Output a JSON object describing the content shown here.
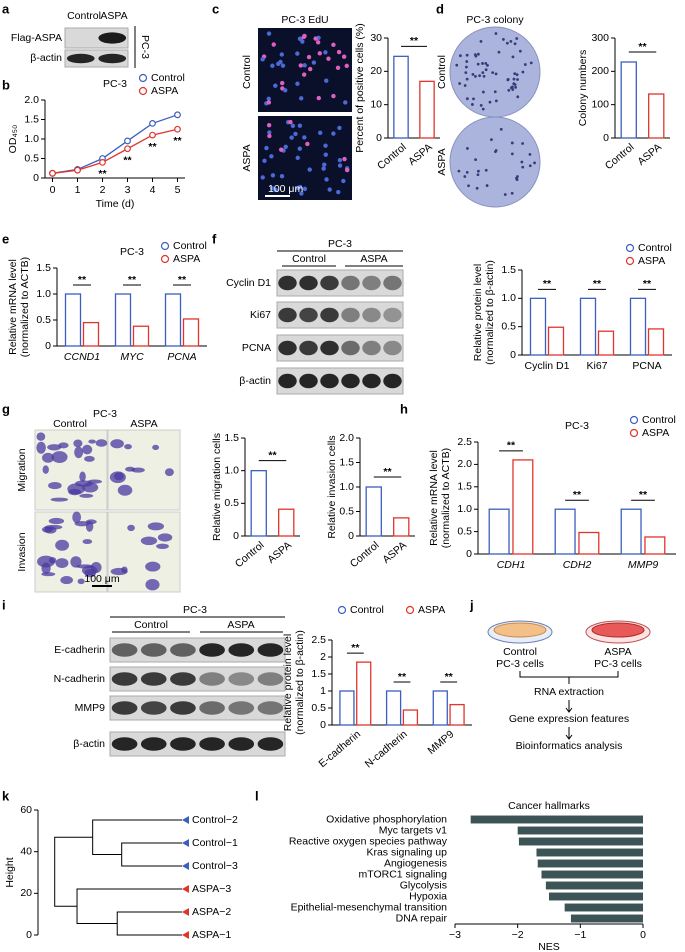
{
  "panel_labels": [
    "a",
    "b",
    "c",
    "d",
    "e",
    "f",
    "g",
    "h",
    "i",
    "j",
    "k",
    "l"
  ],
  "blot_a": {
    "lanes": [
      "Control",
      "ASPA"
    ],
    "rows": [
      "Flag-ASPA",
      "β-actin"
    ],
    "cell_line": "PC-3"
  },
  "image_c": {
    "title": "PC-3 EdU",
    "rows": [
      "Control",
      "ASPA"
    ],
    "scale": "100 μm"
  },
  "image_d": {
    "title": "PC-3 colony",
    "rows": [
      "Control",
      "ASPA"
    ]
  },
  "blot_f": {
    "title": "PC-3",
    "groups": [
      "Control",
      "ASPA"
    ],
    "rows": [
      "Cyclin D1",
      "Ki67",
      "PCNA",
      "β-actin"
    ]
  },
  "image_g": {
    "title": "PC-3",
    "columns": [
      "Control",
      "ASPA"
    ],
    "rows": [
      "Migration",
      "Invasion"
    ],
    "scale": "100 μm"
  },
  "blot_i": {
    "title": "PC-3",
    "groups": [
      "Control",
      "ASPA"
    ],
    "rows": [
      "E-cadherin",
      "N-cadherin",
      "MMP9",
      "β-actin"
    ]
  },
  "flowchart_j": {
    "dishes": [
      [
        "Control",
        "PC-3 cells"
      ],
      [
        "ASPA",
        "PC-3 cells"
      ]
    ],
    "steps": [
      "RNA extraction",
      "Gene expression features",
      "Bioinformatics analysis"
    ]
  },
  "dendrogram_k": {
    "ylabel": "Height",
    "ylim": [
      0,
      60
    ],
    "yticks": [
      0,
      20,
      40,
      60
    ],
    "leaves": [
      {
        "name": "Control−2",
        "color": "#3b5fc0"
      },
      {
        "name": "Control−1",
        "color": "#3b5fc0"
      },
      {
        "name": "Control−3",
        "color": "#3b5fc0"
      },
      {
        "name": "ASPA−3",
        "color": "#e0352b"
      },
      {
        "name": "ASPA−2",
        "color": "#e0352b"
      },
      {
        "name": "ASPA−1",
        "color": "#e0352b"
      }
    ],
    "merge_heights": [
      27,
      40,
      29,
      47,
      57
    ]
  },
  "chart_data": [
    {
      "type": "line",
      "title": "PC-3",
      "xlabel": "Time (d)",
      "ylabel": "OD₄₅₀",
      "x": [
        0,
        1,
        2,
        3,
        4,
        5
      ],
      "xlim": [
        -0.3,
        5.3
      ],
      "xticks": [
        0,
        1,
        2,
        3,
        4,
        5
      ],
      "ylim": [
        0,
        2
      ],
      "yticks": [
        0,
        0.5,
        {
          "value": 1,
          "label": "1.0"
        },
        1.5,
        {
          "value": 2,
          "label": "2.0"
        }
      ],
      "series": [
        {
          "name": "Control",
          "color": "#3b5fc0",
          "values": [
            0.12,
            0.22,
            0.5,
            0.95,
            1.4,
            1.62
          ]
        },
        {
          "name": "ASPA",
          "color": "#e0352b",
          "values": [
            0.12,
            0.2,
            0.4,
            0.75,
            1.1,
            1.25
          ]
        }
      ],
      "annotations": [
        "**",
        "**",
        "**",
        "**"
      ],
      "annotation_x": [
        2,
        3,
        4,
        5
      ],
      "legend": "upper right"
    },
    {
      "type": "bar",
      "ylabel": "Percent of positive cells (%)",
      "categories": [
        "Control",
        "ASPA"
      ],
      "values": [
        24.5,
        17
      ],
      "colors": [
        "#3b5fc0",
        "#e0352b"
      ],
      "ylim": [
        0,
        30
      ],
      "yticks": [
        0,
        10,
        20,
        30
      ],
      "significance": "**"
    },
    {
      "type": "bar",
      "ylabel": "Colony numbers",
      "categories": [
        "Control",
        "ASPA"
      ],
      "values": [
        228,
        132
      ],
      "colors": [
        "#3b5fc0",
        "#e0352b"
      ],
      "ylim": [
        0,
        300
      ],
      "yticks": [
        0,
        100,
        200,
        300
      ],
      "significance": "**"
    },
    {
      "type": "grouped_bar",
      "title": "PC-3",
      "ylabel": [
        "Relative mRNA level",
        "(normalized to ACTB)"
      ],
      "categories": [
        "CCND1",
        "MYC",
        "PCNA"
      ],
      "series": [
        {
          "name": "Control",
          "color": "#3b5fc0",
          "values": [
            1,
            1,
            1
          ]
        },
        {
          "name": "ASPA",
          "color": "#e0352b",
          "values": [
            0.45,
            0.38,
            0.52
          ]
        }
      ],
      "ylim": [
        0,
        1.5
      ],
      "yticks": [
        0,
        0.5,
        {
          "value": 1,
          "label": "1.0"
        },
        1.5
      ],
      "significance": [
        "**",
        "**",
        "**"
      ],
      "legend": "upper right"
    },
    {
      "type": "grouped_bar",
      "ylabel": [
        "Relative protein level",
        "(normalized to β-actin)"
      ],
      "categories": [
        "Cyclin D1",
        "Ki67",
        "PCNA"
      ],
      "series": [
        {
          "name": "Control",
          "color": "#3b5fc0",
          "values": [
            1,
            1,
            1
          ]
        },
        {
          "name": "ASPA",
          "color": "#e0352b",
          "values": [
            0.49,
            0.42,
            0.46
          ]
        }
      ],
      "ylim": [
        0,
        1.5
      ],
      "yticks": [
        0,
        0.5,
        {
          "value": 1,
          "label": "1.0"
        },
        1.5
      ],
      "significance": [
        "**",
        "**",
        "**"
      ],
      "legend": "upper right"
    },
    {
      "type": "bar",
      "ylabel": "Relative migration cells",
      "categories": [
        "Control",
        "ASPA"
      ],
      "values": [
        1,
        0.41
      ],
      "colors": [
        "#3b5fc0",
        "#e0352b"
      ],
      "ylim": [
        0,
        1.5
      ],
      "yticks": [
        0,
        0.5,
        {
          "value": 1,
          "label": "1.0"
        },
        1.5
      ],
      "significance": "**"
    },
    {
      "type": "bar",
      "ylabel": "Relative invasion cells",
      "categories": [
        "Control",
        "ASPA"
      ],
      "values": [
        1,
        0.37
      ],
      "colors": [
        "#3b5fc0",
        "#e0352b"
      ],
      "ylim": [
        0,
        2
      ],
      "yticks": [
        0,
        0.5,
        {
          "value": 1,
          "label": "1.0"
        },
        1.5,
        {
          "value": 2,
          "label": "2.0"
        }
      ],
      "significance": "**"
    },
    {
      "type": "grouped_bar",
      "title": "PC-3",
      "ylabel": [
        "Relative mRNA level",
        "(normalized to ACTB)"
      ],
      "categories": [
        "CDH1",
        "CDH2",
        "MMP9"
      ],
      "series": [
        {
          "name": "Control",
          "color": "#3b5fc0",
          "values": [
            1,
            1,
            1
          ]
        },
        {
          "name": "ASPA",
          "color": "#e0352b",
          "values": [
            2.1,
            0.48,
            0.38
          ]
        }
      ],
      "ylim": [
        0,
        2.5
      ],
      "yticks": [
        0,
        0.5,
        {
          "value": 1,
          "label": "1.0"
        },
        1.5,
        {
          "value": 2,
          "label": "2.0"
        },
        2.5
      ],
      "significance": [
        "**",
        "**",
        "**"
      ],
      "legend": "upper right"
    },
    {
      "type": "grouped_bar",
      "ylabel": [
        "Relative protein level",
        "(normalized to β-actin)"
      ],
      "categories": [
        "E-cadherin",
        "N-cadherin",
        "MMP9"
      ],
      "series": [
        {
          "name": "Control",
          "color": "#3b5fc0",
          "values": [
            1,
            1,
            1
          ]
        },
        {
          "name": "ASPA",
          "color": "#e0352b",
          "values": [
            1.85,
            0.44,
            0.6
          ]
        }
      ],
      "ylim": [
        0,
        2.5
      ],
      "yticks": [
        0,
        0.5,
        1,
        1.5,
        2,
        2.5
      ],
      "significance": [
        "**",
        "**",
        "**"
      ],
      "legend": "top"
    },
    {
      "type": "hbar",
      "title": "Cancer hallmarks",
      "xlabel": "NES",
      "color": "#3d5456",
      "categories": [
        "Oxidative phosphorylation",
        "Myc targets v1",
        "Reactive oxygen species pathway",
        "Kras signaling up",
        "Angiogenesis",
        "mTORC1 signaling",
        "Glycolysis",
        "Hypoxia",
        "Epithelial-mesenchymal transition",
        "DNA repair"
      ],
      "values": [
        -2.75,
        -2.0,
        -1.98,
        -1.7,
        -1.68,
        -1.62,
        -1.55,
        -1.5,
        -1.25,
        -1.15
      ],
      "xlim": [
        -3,
        0
      ],
      "xticks": [
        {
          "value": -3,
          "label": "−3"
        },
        {
          "value": -2,
          "label": "−2"
        },
        {
          "value": -1,
          "label": "−1"
        },
        0
      ]
    }
  ]
}
